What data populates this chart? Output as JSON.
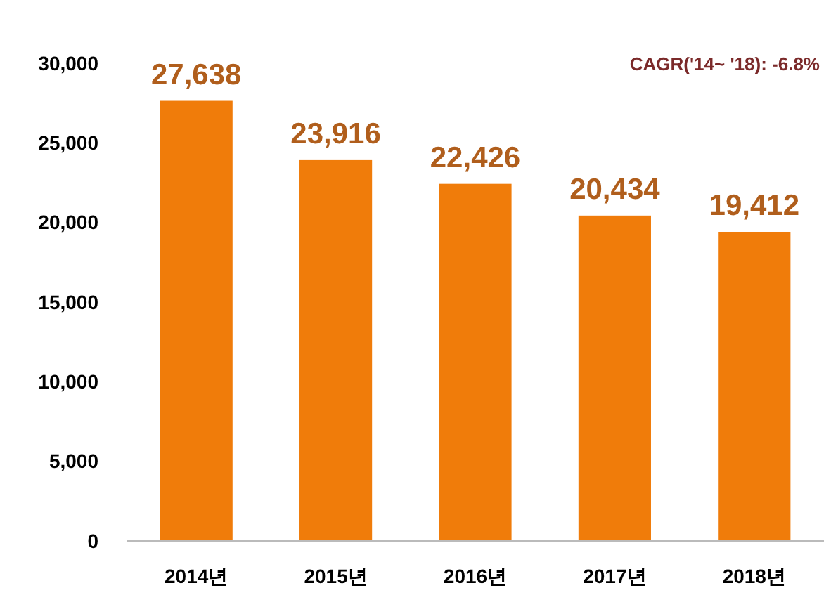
{
  "chart_data": {
    "type": "bar",
    "categories": [
      "2014년",
      "2015년",
      "2016년",
      "2017년",
      "2018년"
    ],
    "values": [
      27638,
      23916,
      22426,
      20434,
      19412
    ],
    "color": "#f07c0a",
    "ylim": [
      0,
      30000
    ],
    "yticks": [
      {
        "value": 0,
        "label": "0"
      },
      {
        "value": 5000,
        "label": "5,000"
      },
      {
        "value": 10000,
        "label": "10,000"
      },
      {
        "value": 15000,
        "label": "15,000"
      },
      {
        "value": 20000,
        "label": "20,000"
      },
      {
        "value": 25000,
        "label": "25,000"
      },
      {
        "value": 30000,
        "label": "30,000"
      }
    ],
    "data_labels": true,
    "value_labels": [
      "27,638",
      "23,916",
      "22,426",
      "20,434",
      "19,412"
    ],
    "annotations": [
      "CAGR('14~ '18): -6.8%"
    ],
    "grid": false
  }
}
